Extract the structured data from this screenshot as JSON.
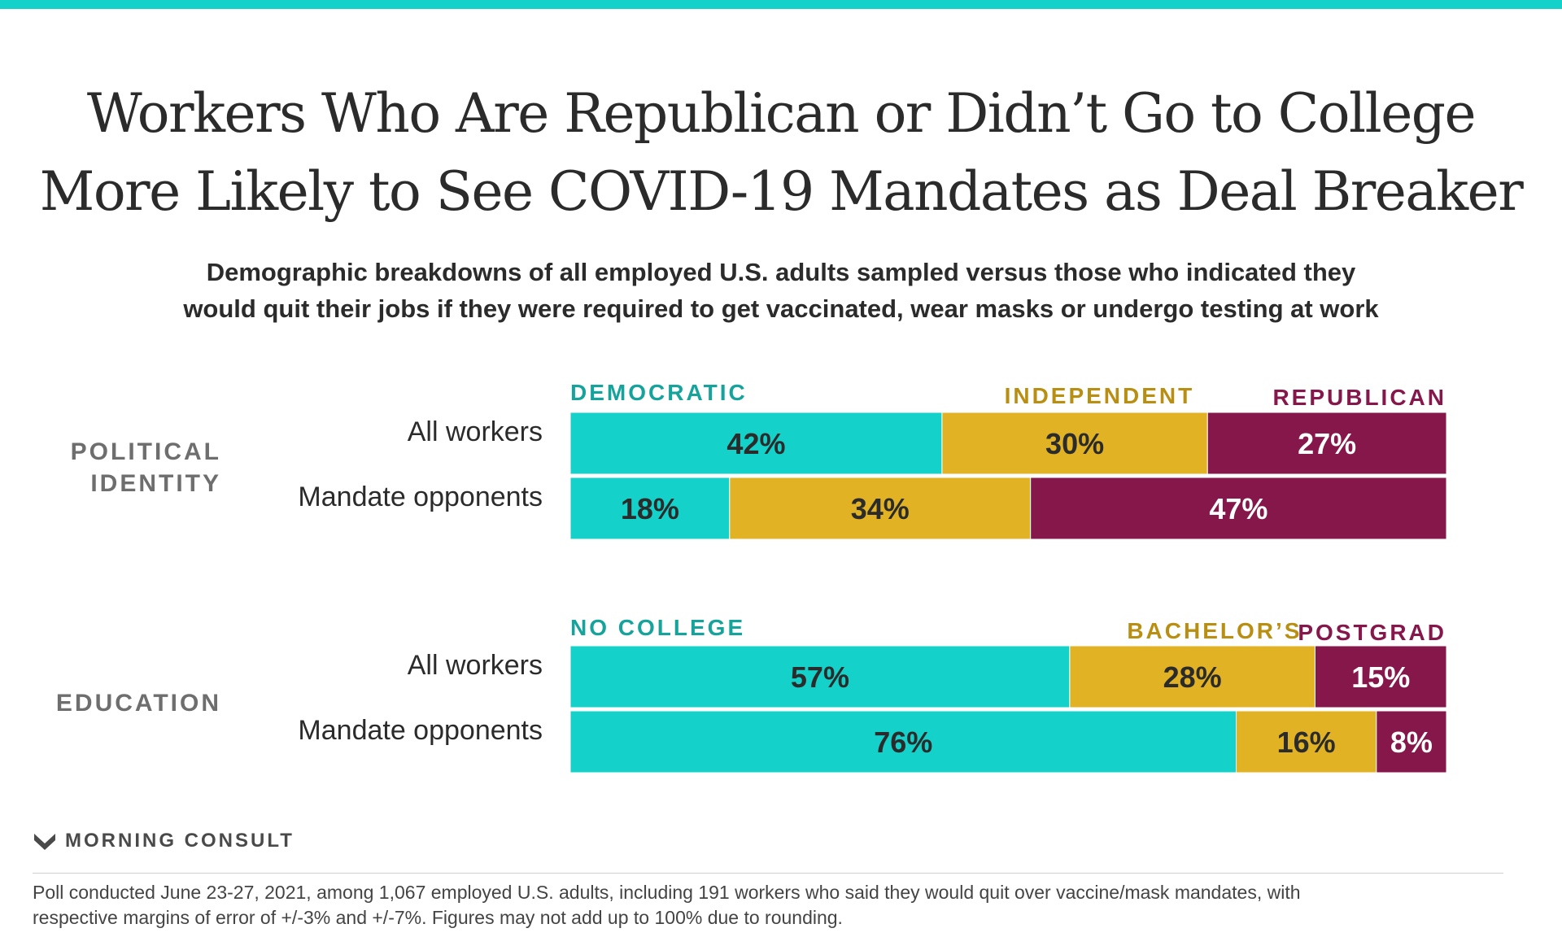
{
  "title": {
    "line1": "Workers Who Are Republican or Didn’t Go to College",
    "line2": "More Likely to See COVID-19 Mandates as Deal Breaker"
  },
  "subtitle": {
    "line1": "Demographic breakdowns of all employed U.S. adults sampled versus those who indicated they",
    "line2": "would quit their jobs if they were required to get vaccinated, wear masks or undergo testing at work"
  },
  "brand": {
    "name": "MORNING CONSULT",
    "icon": "morning-consult-logo-icon"
  },
  "footnote": {
    "line1": "Poll conducted June 23-27, 2021, among 1,067 employed U.S. adults, including 191 workers who said they would quit over vaccine/mask mandates, with",
    "line2": "respective margins of error of +/-3% and +/-7%. Figures may not add up to 100% due to rounding."
  },
  "chart_data": [
    {
      "type": "bar",
      "stacked": true,
      "orientation": "horizontal",
      "section_label": [
        "POLITICAL",
        "IDENTITY"
      ],
      "categories": [
        "All workers",
        "Mandate opponents"
      ],
      "series": [
        {
          "name": "DEMOCRATIC",
          "color": "#14d1c9",
          "label_color": "#15a39b",
          "values": [
            42,
            18
          ],
          "labels": [
            "42%",
            "18%"
          ]
        },
        {
          "name": "INDEPENDENT",
          "color": "#e2b225",
          "label_color": "#b88f12",
          "values": [
            30,
            34
          ],
          "labels": [
            "30%",
            "34%"
          ]
        },
        {
          "name": "REPUBLICAN",
          "color": "#85174b",
          "label_color": "#85174b",
          "values": [
            27,
            47
          ],
          "labels": [
            "27%",
            "47%"
          ]
        }
      ]
    },
    {
      "type": "bar",
      "stacked": true,
      "orientation": "horizontal",
      "section_label": [
        "EDUCATION"
      ],
      "categories": [
        "All workers",
        "Mandate opponents"
      ],
      "series": [
        {
          "name": "NO COLLEGE",
          "color": "#14d1c9",
          "label_color": "#15a39b",
          "values": [
            57,
            76
          ],
          "labels": [
            "57%",
            "76%"
          ]
        },
        {
          "name": "BACHELOR’S",
          "color": "#e2b225",
          "label_color": "#b88f12",
          "values": [
            28,
            16
          ],
          "labels": [
            "28%",
            "16%"
          ]
        },
        {
          "name": "POSTGRAD",
          "color": "#85174b",
          "label_color": "#85174b",
          "values": [
            15,
            8
          ],
          "labels": [
            "15%",
            "8%"
          ]
        }
      ]
    }
  ]
}
